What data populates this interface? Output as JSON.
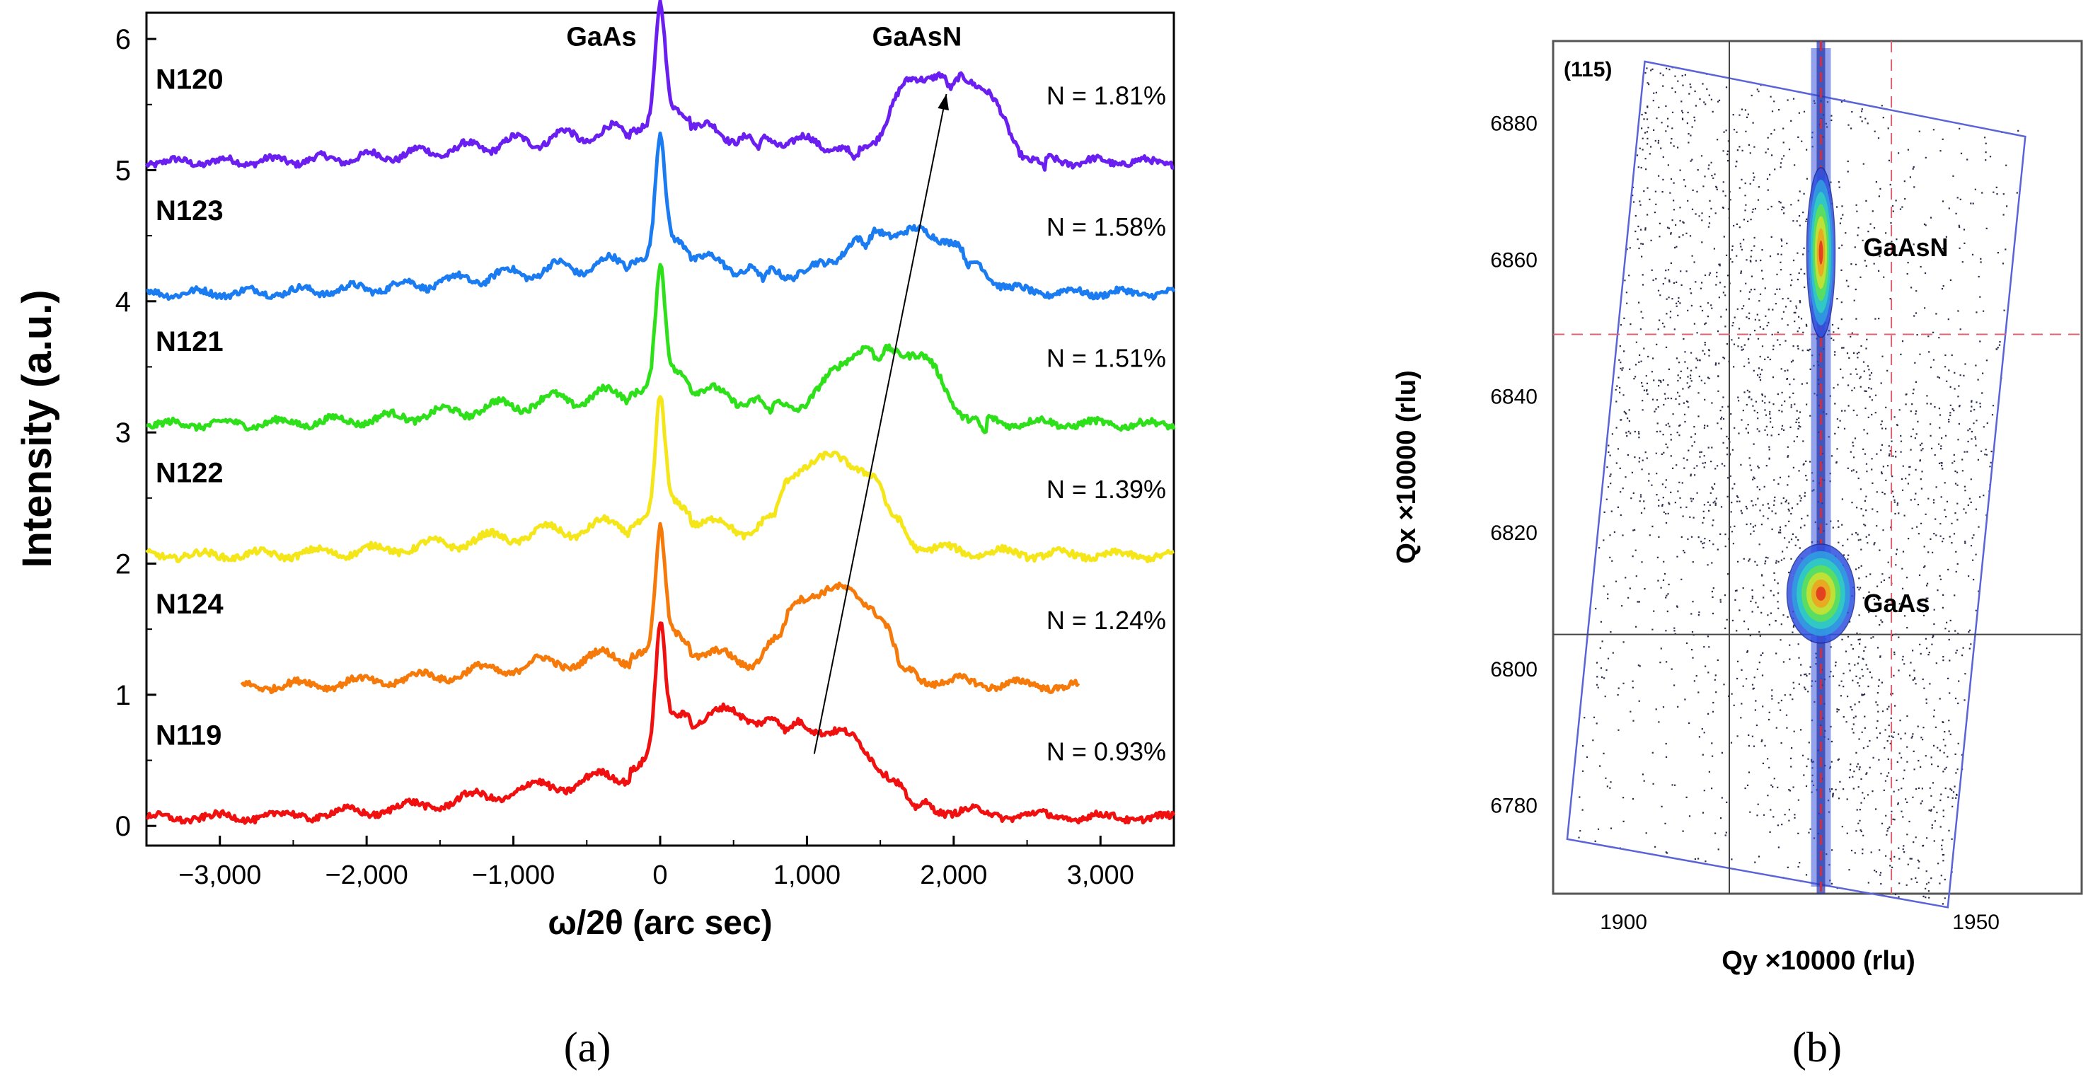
{
  "chart_data": [
    {
      "type": "line",
      "panel_label": "(a)",
      "xlabel": "ω/2θ (arc sec)",
      "ylabel": "Intensity (a.u.)",
      "xlim": [
        -3500,
        3500
      ],
      "ylim": [
        -0.15,
        6.2
      ],
      "xticks": [
        -3000,
        -2000,
        -1000,
        0,
        1000,
        2000,
        3000
      ],
      "xtick_labels": [
        "−3,000",
        "−2,000",
        "−1,000",
        "0",
        "1,000",
        "2,000",
        "3,000"
      ],
      "yticks": [
        0,
        1,
        2,
        3,
        4,
        5,
        6
      ],
      "ytick_labels": [
        "0",
        "1",
        "2",
        "3",
        "4",
        "5",
        "6"
      ],
      "peak_labels": [
        {
          "text": "GaAs",
          "x": -400,
          "y": 5.95
        },
        {
          "text": "GaAsN",
          "x": 1750,
          "y": 5.95
        }
      ],
      "arrow": {
        "from": {
          "x": 1050,
          "y": 0.55
        },
        "to": {
          "x": 1950,
          "y": 5.58
        }
      },
      "series": [
        {
          "name": "N120",
          "composition": "N = 1.81%",
          "offset": 5,
          "color": "#6a1ff0",
          "layer_peak_x": 1950,
          "layer_peak_height": 0.62,
          "layer_peak_width": 420,
          "x_range": [
            -3500,
            3500
          ]
        },
        {
          "name": "N123",
          "composition": "N = 1.58%",
          "offset": 4,
          "color": "#1a7cf0",
          "layer_peak_x": 1700,
          "layer_peak_height": 0.4,
          "layer_peak_width": 520,
          "x_range": [
            -3500,
            3500
          ]
        },
        {
          "name": "N121",
          "composition": "N = 1.51%",
          "offset": 3,
          "color": "#2ee01a",
          "layer_peak_x": 1550,
          "layer_peak_height": 0.5,
          "layer_peak_width": 420,
          "x_range": [
            -3500,
            3500
          ]
        },
        {
          "name": "N122",
          "composition": "N = 1.39%",
          "offset": 2,
          "color": "#f5e61a",
          "layer_peak_x": 1200,
          "layer_peak_height": 0.6,
          "layer_peak_width": 420,
          "x_range": [
            -3500,
            3500
          ]
        },
        {
          "name": "N124",
          "composition": "N = 1.24%",
          "offset": 1,
          "color": "#f57a0a",
          "layer_peak_x": 1200,
          "layer_peak_height": 0.6,
          "layer_peak_width": 420,
          "x_range": [
            -2850,
            2850
          ]
        },
        {
          "name": "N119",
          "composition": "N = 0.93%",
          "offset": 0,
          "color": "#f01010",
          "layer_peak_x": 800,
          "layer_peak_height": 0.52,
          "layer_peak_width": 800,
          "x_range": [
            -3500,
            3500
          ]
        }
      ]
    },
    {
      "type": "scatter",
      "subtype": "reciprocal space map",
      "panel_label": "(b)",
      "reflection": "(115)",
      "xlabel": "Qy ×10000 (rlu)",
      "ylabel": "Qx ×10000 (rlu)",
      "xlim": [
        1890,
        1965
      ],
      "ylim": [
        6767,
        6892
      ],
      "xticks": [
        1900,
        1950
      ],
      "xtick_labels": [
        "1900",
        "1950"
      ],
      "yticks": [
        6780,
        6800,
        6820,
        6840,
        6860,
        6880
      ],
      "ytick_labels": [
        "6780",
        "6800",
        "6820",
        "6840",
        "6860",
        "6880"
      ],
      "peaks": [
        {
          "name": "GaAsN",
          "qy": 1928,
          "qx": 6861
        },
        {
          "name": "GaAs",
          "qy": 1928,
          "qx": 6811
        }
      ],
      "reference_lines": {
        "solid_qy": 1915,
        "solid_qx": 6805,
        "dashed_qy": 1938,
        "dashed_qx": 6849
      },
      "scan_region_corners": [
        [
          1892,
          6775
        ],
        [
          1903,
          6889
        ],
        [
          1957,
          6878
        ],
        [
          1946,
          6765
        ]
      ]
    }
  ]
}
